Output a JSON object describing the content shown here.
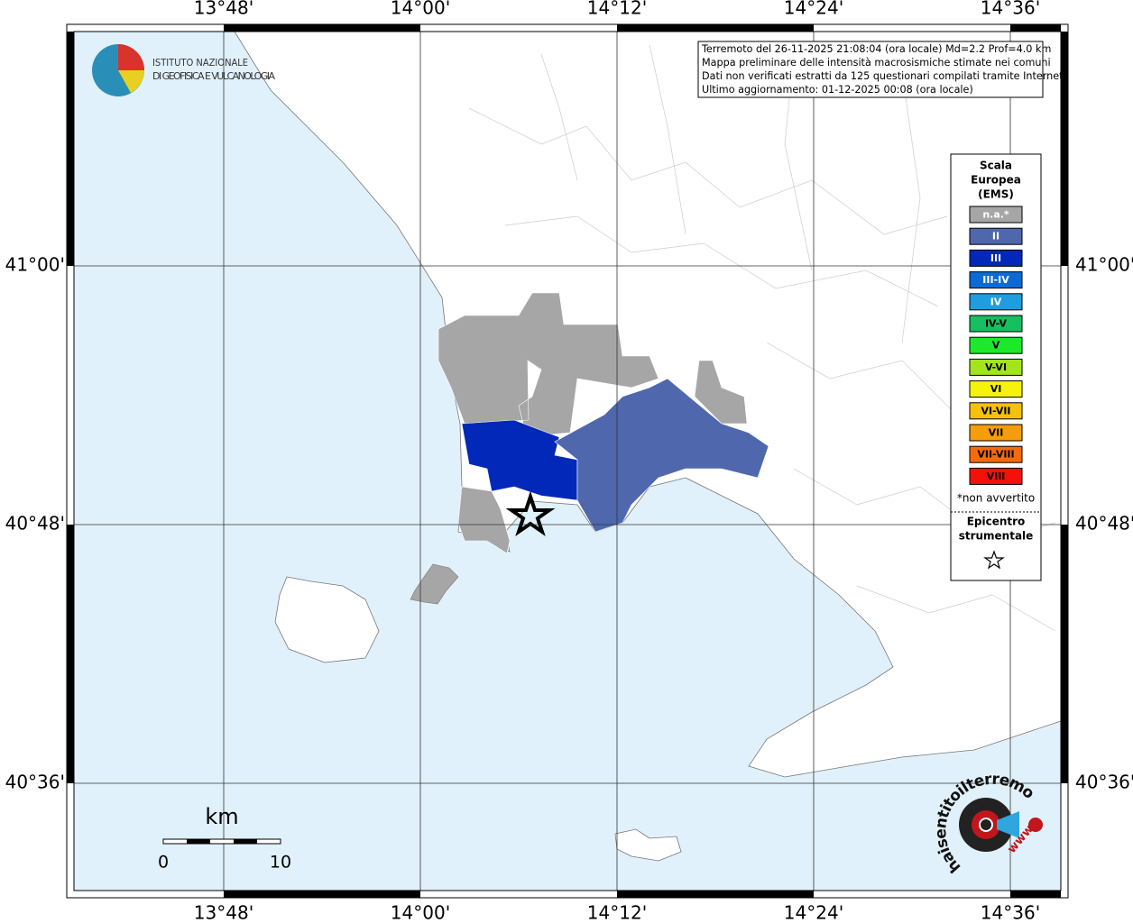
{
  "map": {
    "lon_labels": [
      "13°48'",
      "14°00'",
      "14°12'",
      "14°24'",
      "14°36'"
    ],
    "lat_labels": [
      "41°00'",
      "40°48'",
      "40°36'"
    ],
    "info": [
      "Terremoto del 26-11-2025 21:08:04 (ora locale) Md=2.2 Prof=4.0 km",
      "Mappa preliminare delle intensità macrosismiche stimate nei comuni",
      "Dati non verificati estratti da 125 questionari compilati tramite Internet.",
      "Ultimo aggiornamento: 01-12-2025 00:08 (ora locale)"
    ],
    "logo": [
      "ISTITUTO NAZIONALE",
      "DI GEOFISICA E VULCANOLOGIA"
    ],
    "legend": {
      "title": [
        "Scala",
        "Europea",
        "(EMS)"
      ],
      "items": [
        {
          "label": "n.a.*",
          "color": "#a6a6a6"
        },
        {
          "label": "II",
          "color": "#4f67ad"
        },
        {
          "label": "III",
          "color": "#0128b8"
        },
        {
          "label": "III-IV",
          "color": "#0b6bd4"
        },
        {
          "label": "IV",
          "color": "#1e9de0"
        },
        {
          "label": "IV-V",
          "color": "#16c060"
        },
        {
          "label": "V",
          "color": "#1ee82a"
        },
        {
          "label": "V-VI",
          "color": "#a2e619"
        },
        {
          "label": "VI",
          "color": "#f6f20a"
        },
        {
          "label": "VI-VII",
          "color": "#f5c10a"
        },
        {
          "label": "VII",
          "color": "#f59d0a"
        },
        {
          "label": "VII-VIII",
          "color": "#f56a0a"
        },
        {
          "label": "VIII",
          "color": "#f5100a"
        }
      ],
      "note": "*non avvertito",
      "epicenter": [
        "Epicentro",
        "strumentale"
      ]
    },
    "scale": {
      "unit": "km",
      "labels": [
        "0",
        "10"
      ]
    },
    "badge": {
      "text": "haisentitoilterremoto.it",
      "www": "www."
    }
  }
}
